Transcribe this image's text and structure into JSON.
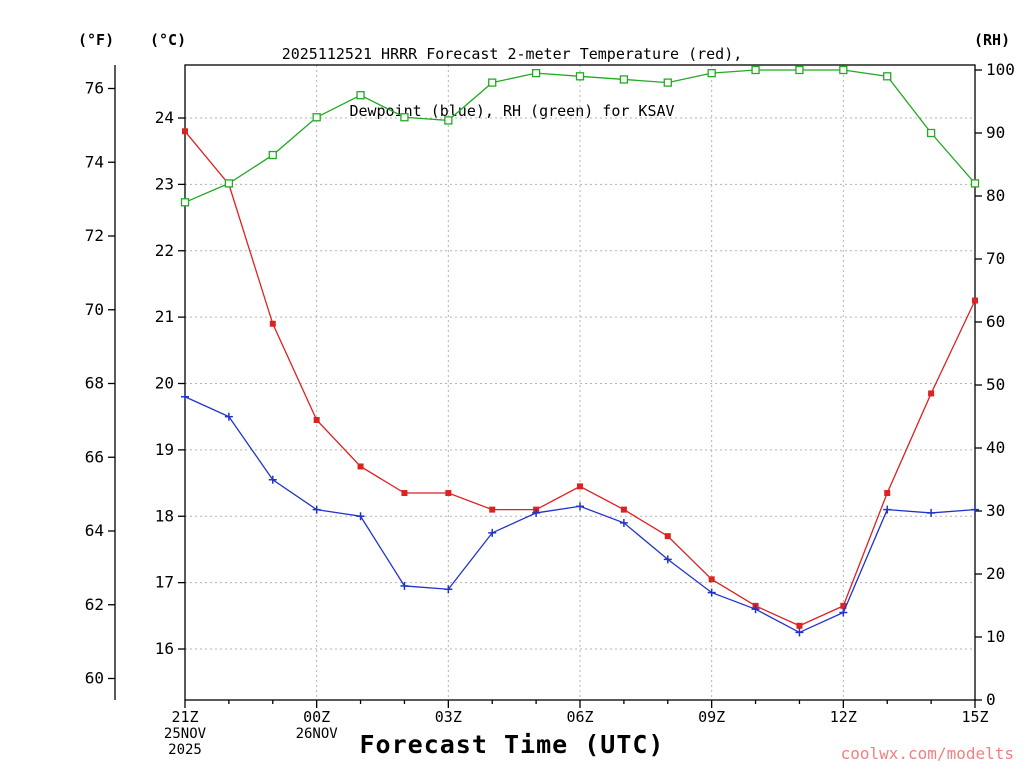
{
  "page": {
    "title_line1": "2025112521 HRRR Forecast 2-meter Temperature (red),",
    "title_line2": "Dewpoint (blue), RH (green) for KSAV",
    "unit_f": "(°F)",
    "unit_c": "(°C)",
    "unit_rh": "(RH)",
    "x_axis_title": "Forecast Time (UTC)",
    "watermark": "coolwx.com/modelts"
  },
  "colors": {
    "temperature": "#dd2222",
    "dewpoint": "#2233cc",
    "rh": "#22aa22",
    "watermark": "#f28080",
    "grid": "#b3b3b3",
    "axis": "#000000"
  },
  "chart_data": {
    "type": "line",
    "station": "KSAV",
    "title": "2025112521 HRRR Forecast 2-meter Temperature (red), Dewpoint (blue), RH (green) for KSAV",
    "xlabel": "Forecast Time (UTC)",
    "x_hours": [
      "21Z",
      "22Z",
      "23Z",
      "00Z",
      "01Z",
      "02Z",
      "03Z",
      "04Z",
      "05Z",
      "06Z",
      "07Z",
      "08Z",
      "09Z",
      "10Z",
      "11Z",
      "12Z",
      "13Z",
      "14Z",
      "15Z"
    ],
    "x_major_ticks": [
      {
        "index": 0,
        "label": "21Z",
        "sublabels": [
          "25NOV",
          "2025"
        ]
      },
      {
        "index": 3,
        "label": "00Z",
        "sublabels": [
          "26NOV"
        ]
      },
      {
        "index": 6,
        "label": "03Z",
        "sublabels": []
      },
      {
        "index": 9,
        "label": "06Z",
        "sublabels": []
      },
      {
        "index": 12,
        "label": "09Z",
        "sublabels": []
      },
      {
        "index": 15,
        "label": "12Z",
        "sublabels": []
      },
      {
        "index": 18,
        "label": "15Z",
        "sublabels": []
      }
    ],
    "axes": {
      "celsius_ticks": [
        16,
        17,
        18,
        19,
        20,
        21,
        22,
        23,
        24
      ],
      "fahrenheit_ticks": [
        60,
        62,
        64,
        66,
        68,
        70,
        72,
        74,
        76
      ],
      "rh_ticks": [
        0,
        10,
        20,
        30,
        40,
        50,
        60,
        70,
        80,
        90,
        100
      ],
      "celsius_range": [
        15.2,
        24.8
      ],
      "rh_range": [
        0,
        100.8
      ],
      "grid": true
    },
    "legend": {
      "position": "in-title",
      "entries": [
        "Temperature (red)",
        "Dewpoint (blue)",
        "RH (green)"
      ]
    },
    "series": [
      {
        "name": "2-meter Temperature",
        "unit": "°C",
        "axis": "celsius",
        "color": "#dd2222",
        "marker": "square-filled",
        "values": [
          23.8,
          23.0,
          20.9,
          19.45,
          18.75,
          18.35,
          18.35,
          18.1,
          18.1,
          18.45,
          18.1,
          17.7,
          17.05,
          16.65,
          16.35,
          16.65,
          18.35,
          19.85,
          21.25
        ]
      },
      {
        "name": "Dewpoint",
        "unit": "°C",
        "axis": "celsius",
        "color": "#2233cc",
        "marker": "plus",
        "values": [
          19.8,
          19.5,
          18.55,
          18.1,
          18.0,
          16.95,
          16.9,
          17.75,
          18.05,
          18.15,
          17.9,
          17.35,
          16.85,
          16.6,
          16.25,
          16.55,
          18.1,
          18.05,
          18.1
        ]
      },
      {
        "name": "RH",
        "unit": "%",
        "axis": "rh",
        "color": "#22aa22",
        "marker": "square-open",
        "values": [
          79,
          82,
          86.5,
          92.5,
          96,
          92.5,
          92,
          98,
          99.5,
          99,
          98.5,
          98,
          99.5,
          100,
          100,
          100,
          99,
          90,
          82
        ]
      }
    ]
  }
}
